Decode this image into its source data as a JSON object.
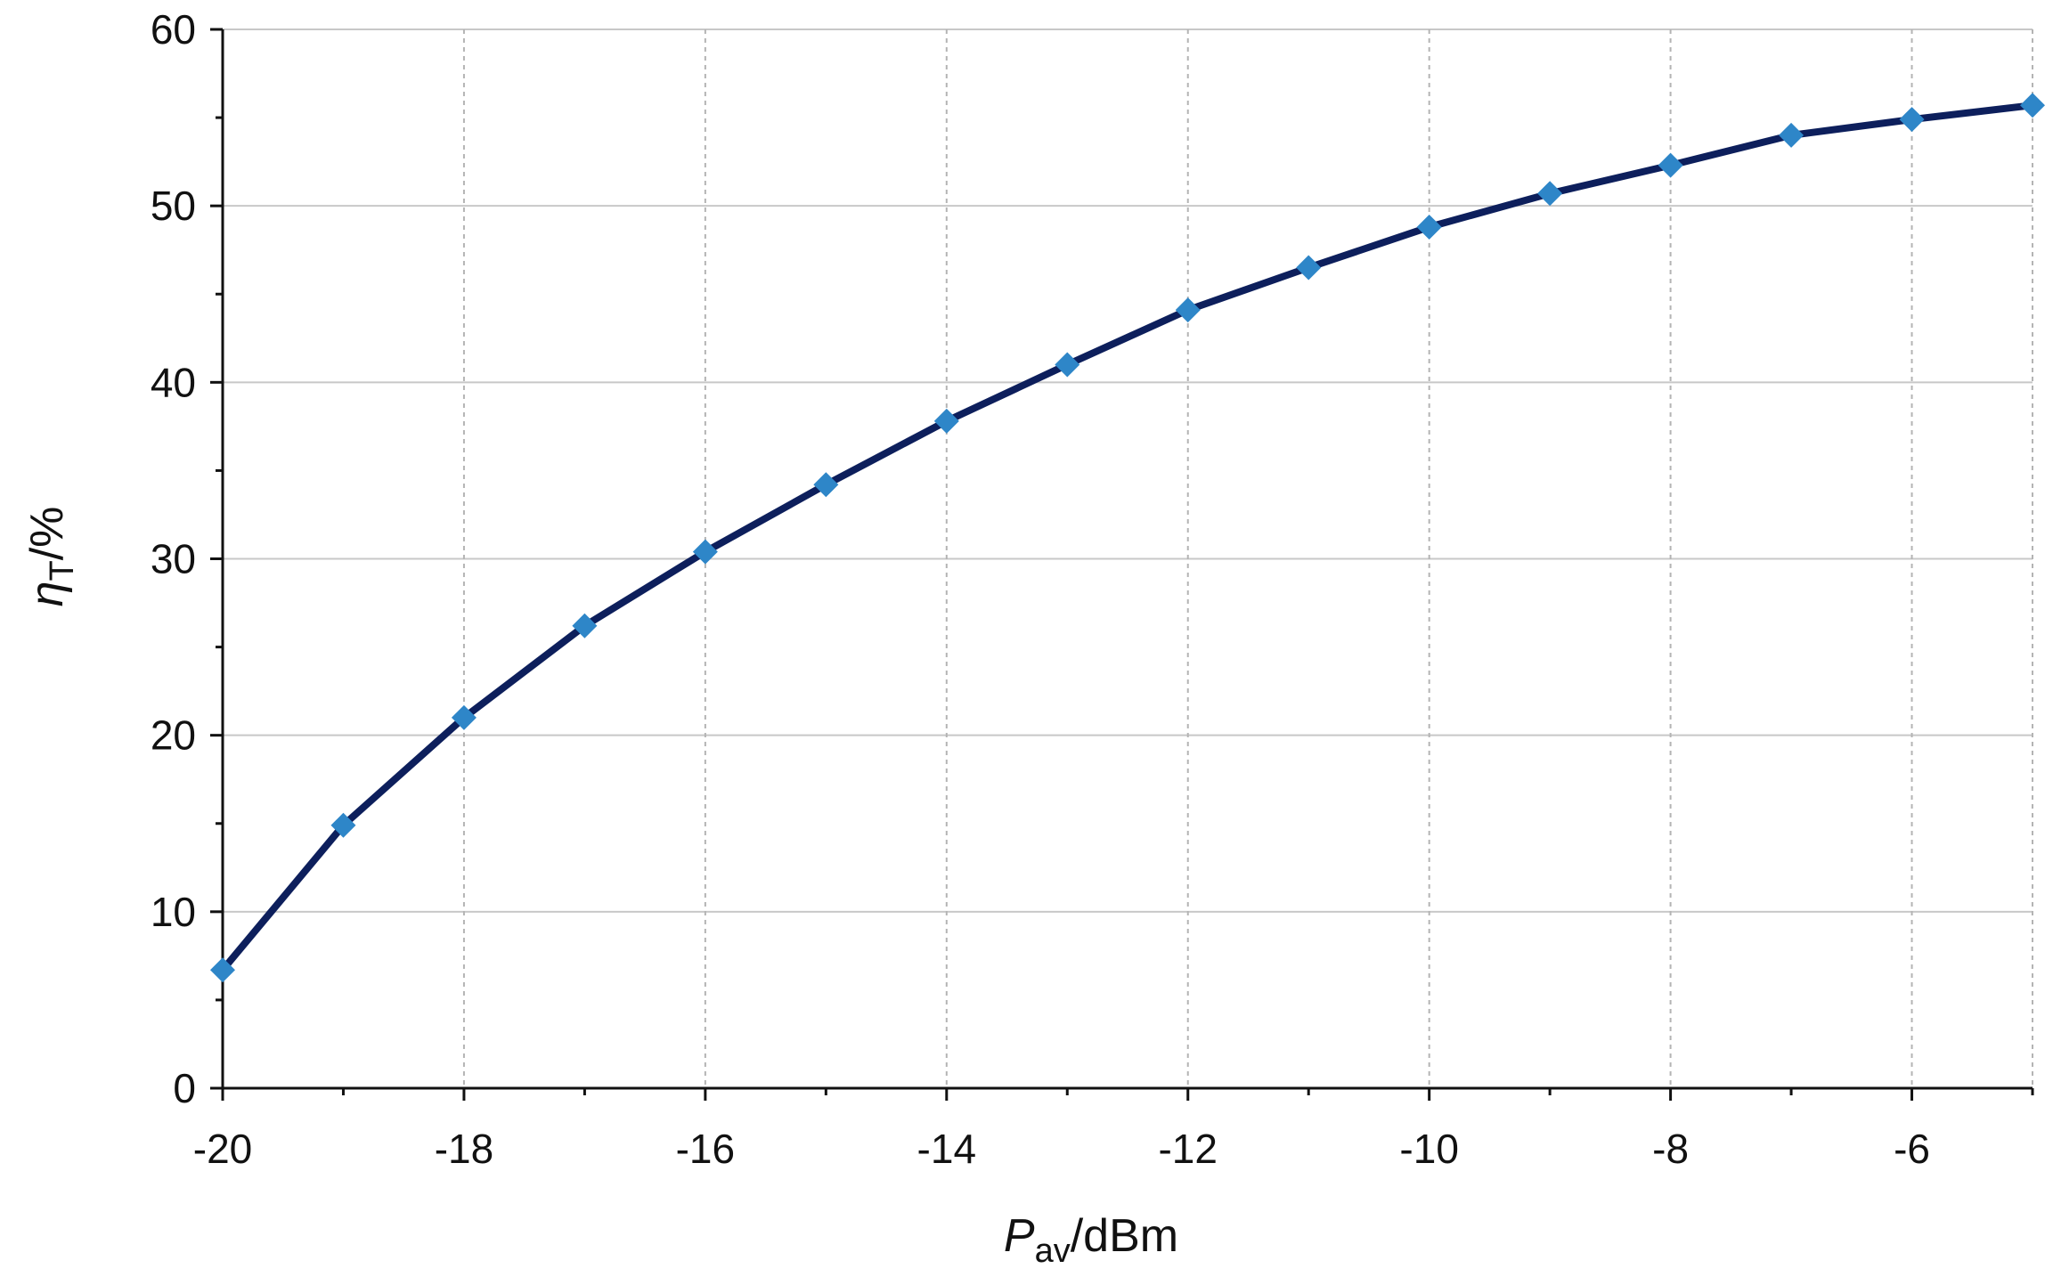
{
  "chart_data": {
    "type": "line",
    "title": "",
    "xlabel": {
      "main": "P",
      "sub": "av",
      "unit": "/dBm"
    },
    "ylabel": {
      "main": "η",
      "sub": "T",
      "unit": "/%"
    },
    "xlim": [
      -20,
      -5
    ],
    "ylim": [
      0,
      60
    ],
    "x_ticks": [
      -20,
      -18,
      -16,
      -14,
      -12,
      -10,
      -8,
      -6
    ],
    "y_ticks": [
      0,
      10,
      20,
      30,
      40,
      50,
      60
    ],
    "x_grid": "dotted-vertical",
    "y_grid": "solid-horizontal",
    "legend": "none",
    "series": [
      {
        "x": [
          -20,
          -19,
          -18,
          -17,
          -16,
          -15,
          -14,
          -13,
          -12,
          -11,
          -10,
          -9,
          -8,
          -7,
          -6,
          -5
        ],
        "y": [
          6.7,
          14.9,
          21.0,
          26.2,
          30.4,
          34.2,
          37.8,
          41.0,
          44.1,
          46.5,
          48.8,
          50.7,
          52.3,
          54.0,
          54.9,
          55.7
        ],
        "line_color": "#0d1f5c",
        "marker": "diamond",
        "marker_color": "#2e86c8"
      }
    ]
  }
}
